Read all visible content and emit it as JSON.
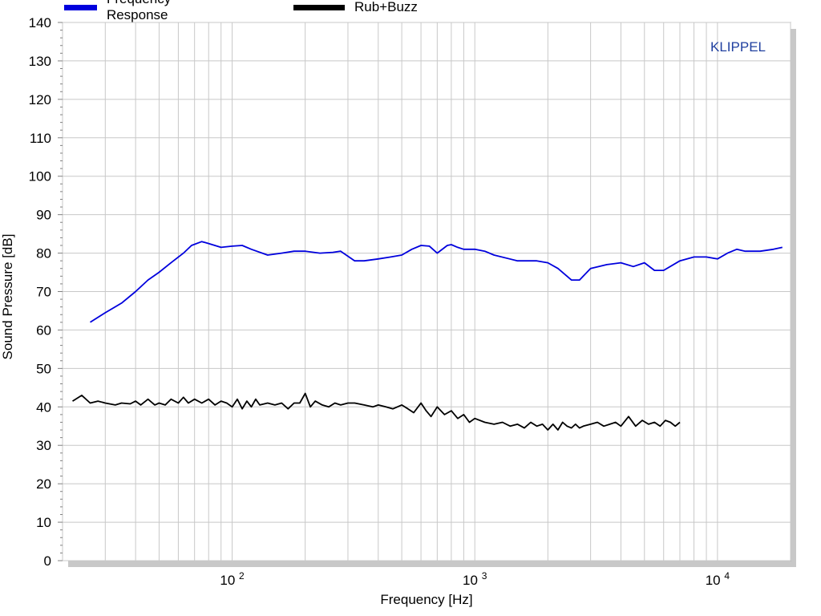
{
  "chart_data": {
    "type": "line",
    "watermark": "KLIPPEL",
    "xlabel": "Frequency  [Hz]",
    "ylabel": "Sound Pressure  [dB]",
    "xscale": "log",
    "xlim": [
      20,
      20000
    ],
    "ylim": [
      0,
      140
    ],
    "yticks": [
      0,
      10,
      20,
      30,
      40,
      50,
      60,
      70,
      80,
      90,
      100,
      110,
      120,
      130,
      140
    ],
    "xticks": [
      {
        "value": 100,
        "base": "10",
        "exp": "2"
      },
      {
        "value": 1000,
        "base": "10",
        "exp": "3"
      },
      {
        "value": 10000,
        "base": "10",
        "exp": "4"
      }
    ],
    "grid": true,
    "legend": "top",
    "series": [
      {
        "name": "Frequency Response",
        "color": "#0000dd",
        "x": [
          26,
          30,
          35,
          40,
          45,
          50,
          56,
          63,
          68,
          75,
          80,
          90,
          100,
          110,
          120,
          140,
          160,
          180,
          200,
          230,
          260,
          280,
          320,
          350,
          400,
          450,
          500,
          550,
          600,
          650,
          700,
          770,
          800,
          850,
          900,
          1000,
          1100,
          1200,
          1500,
          1800,
          2000,
          2200,
          2500,
          2700,
          3000,
          3500,
          4000,
          4500,
          5000,
          5500,
          6000,
          7000,
          8000,
          9000,
          10000,
          11000,
          12000,
          13000,
          15000,
          17000,
          18500
        ],
        "y": [
          62,
          64.5,
          67,
          70,
          73,
          75,
          77.5,
          80,
          82,
          83,
          82.5,
          81.5,
          81.8,
          82,
          81,
          79.5,
          80,
          80.5,
          80.5,
          80,
          80.2,
          80.5,
          78,
          78,
          78.5,
          79,
          79.5,
          81,
          82,
          81.8,
          80,
          82,
          82.2,
          81.5,
          81,
          81,
          80.5,
          79.5,
          78,
          78,
          77.5,
          76,
          73,
          73,
          76,
          77,
          77.5,
          76.5,
          77.5,
          75.5,
          75.5,
          78,
          79,
          79,
          78.5,
          80,
          81,
          80.5,
          80.5,
          81,
          81.5
        ]
      },
      {
        "name": "Rub+Buzz",
        "color": "#000000",
        "x": [
          22,
          24,
          26,
          28,
          30,
          33,
          35,
          38,
          40,
          42,
          45,
          48,
          50,
          53,
          56,
          60,
          63,
          66,
          70,
          75,
          80,
          85,
          90,
          95,
          100,
          105,
          110,
          115,
          120,
          125,
          130,
          140,
          150,
          160,
          170,
          180,
          190,
          200,
          210,
          220,
          235,
          250,
          265,
          280,
          300,
          320,
          350,
          380,
          400,
          430,
          460,
          500,
          530,
          560,
          600,
          630,
          660,
          700,
          750,
          800,
          850,
          900,
          950,
          1000,
          1100,
          1200,
          1300,
          1400,
          1500,
          1600,
          1700,
          1800,
          1900,
          2000,
          2100,
          2200,
          2300,
          2400,
          2500,
          2600,
          2700,
          2800,
          3000,
          3200,
          3400,
          3600,
          3800,
          4000,
          4300,
          4600,
          4900,
          5200,
          5500,
          5800,
          6100,
          6400,
          6700,
          7000
        ],
        "y": [
          41.5,
          43,
          41,
          41.5,
          41,
          40.5,
          41,
          40.8,
          41.5,
          40.5,
          42,
          40.5,
          41,
          40.5,
          42,
          41,
          42.5,
          41,
          42,
          41,
          42,
          40.5,
          41.5,
          41,
          40,
          42,
          39.5,
          41.5,
          40,
          42,
          40.5,
          41,
          40.5,
          41,
          39.5,
          41,
          41,
          43.5,
          40,
          41.5,
          40.5,
          40,
          41,
          40.5,
          41,
          41,
          40.5,
          40,
          40.5,
          40,
          39.5,
          40.5,
          39.5,
          38.5,
          41,
          39,
          37.5,
          40,
          38,
          39,
          37,
          38,
          36,
          37,
          36,
          35.5,
          36,
          35,
          35.5,
          34.5,
          36,
          35,
          35.5,
          34,
          35.5,
          34,
          36,
          35,
          34.5,
          35.5,
          34.5,
          35,
          35.5,
          36,
          35,
          35.5,
          36,
          35,
          37.5,
          35,
          36.5,
          35.5,
          36,
          35,
          36.5,
          36,
          35,
          36
        ]
      }
    ]
  }
}
